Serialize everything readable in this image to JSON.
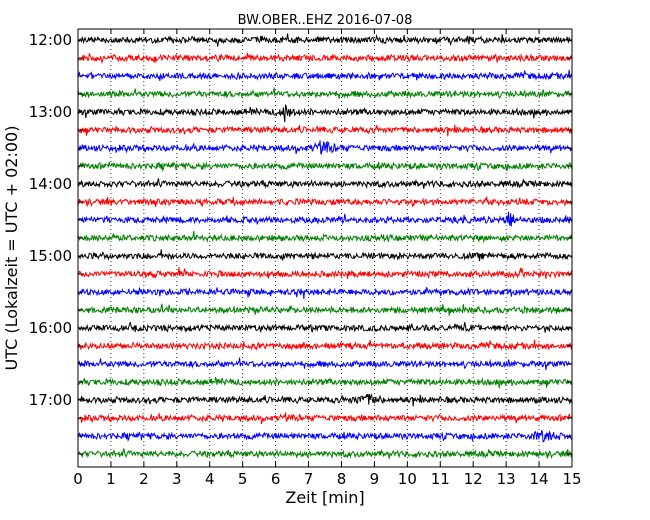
{
  "chart_data": {
    "type": "line",
    "title": "BW.OBER..EHZ 2016-07-08",
    "xlabel": "Zeit  [min]",
    "ylabel": "UTC (Lokalzeit = UTC + 02:00)",
    "xlim": [
      0,
      15
    ],
    "x_ticks": [
      0,
      1,
      2,
      3,
      4,
      5,
      6,
      7,
      8,
      9,
      10,
      11,
      12,
      13,
      14,
      15
    ],
    "x_tick_labels": [
      "0",
      "1",
      "2",
      "3",
      "4",
      "5",
      "6",
      "7",
      "8",
      "9",
      "10",
      "11",
      "12",
      "13",
      "14",
      "15"
    ],
    "y_tick_labels": [
      "12:00",
      "13:00",
      "14:00",
      "15:00",
      "16:00",
      "17:00"
    ],
    "grid": "vertical dotted at each minute",
    "trace_colors": [
      "#000000",
      "#ff0000",
      "#0000ff",
      "#008000"
    ],
    "trace_start_minutes_utc": [
      720,
      735,
      750,
      765,
      780,
      795,
      810,
      825,
      840,
      855,
      870,
      885,
      900,
      915,
      930,
      945,
      960,
      975,
      990,
      1005,
      1020,
      1035,
      1050,
      1065
    ],
    "events": [
      {
        "trace": 4,
        "minute": 6.3,
        "size": "large"
      },
      {
        "trace": 10,
        "minute": 13.1,
        "size": "large"
      },
      {
        "trace": 6,
        "minute": 7.5,
        "size": "medium"
      },
      {
        "trace": 22,
        "minute": 14.2,
        "size": "medium"
      },
      {
        "trace": 20,
        "minute": 8.8,
        "size": "medium"
      }
    ]
  }
}
